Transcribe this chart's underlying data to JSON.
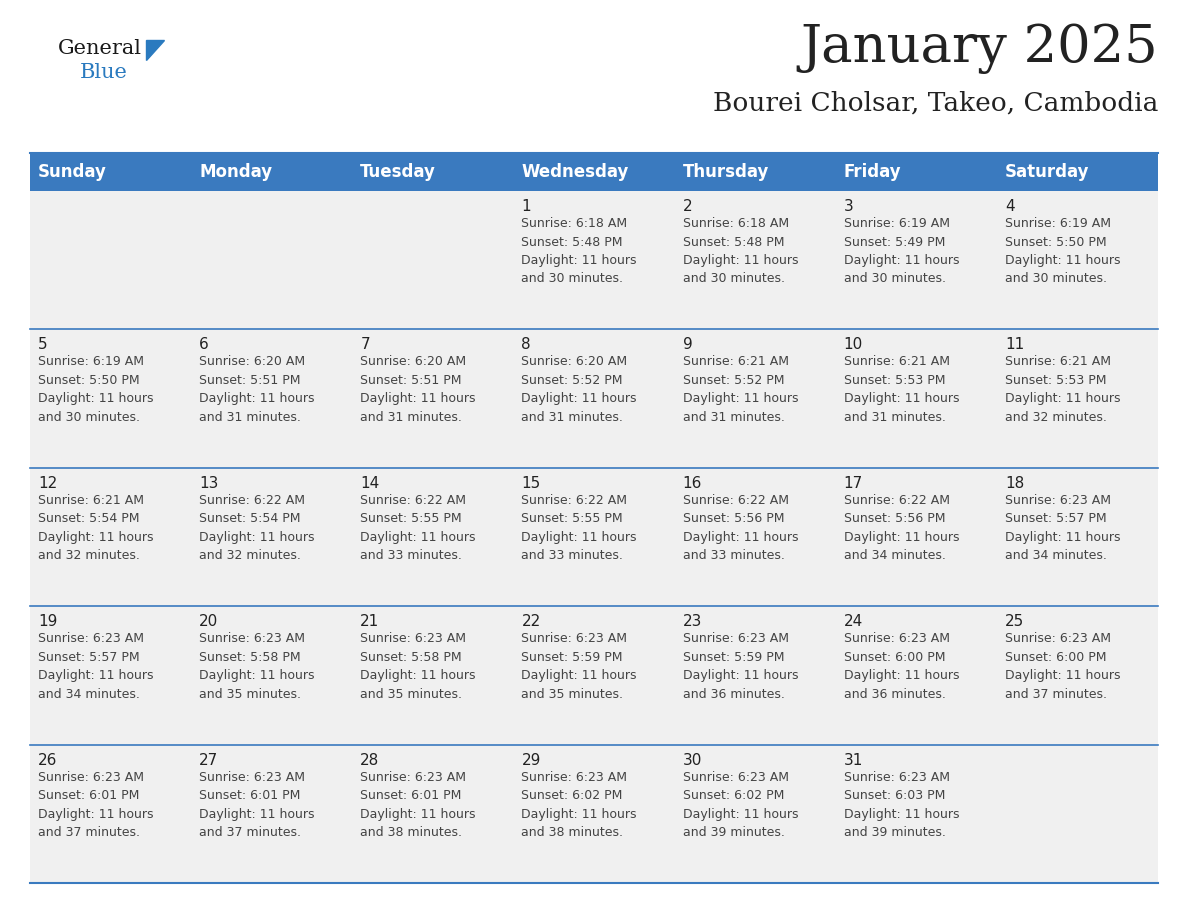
{
  "title": "January 2025",
  "subtitle": "Bourei Cholsar, Takeo, Cambodia",
  "days_of_week": [
    "Sunday",
    "Monday",
    "Tuesday",
    "Wednesday",
    "Thursday",
    "Friday",
    "Saturday"
  ],
  "header_bg": "#3a7abf",
  "header_text_color": "#ffffff",
  "cell_bg": "#f0f0f0",
  "row_line_color": "#3a7abf",
  "title_color": "#222222",
  "subtitle_color": "#222222",
  "day_number_color": "#222222",
  "cell_text_color": "#444444",
  "logo_general_color": "#1a1a1a",
  "logo_blue_color": "#2a7abf",
  "logo_triangle_color": "#2a7abf",
  "weeks": [
    [
      {
        "day": null,
        "data": null
      },
      {
        "day": null,
        "data": null
      },
      {
        "day": null,
        "data": null
      },
      {
        "day": 1,
        "data": "Sunrise: 6:18 AM\nSunset: 5:48 PM\nDaylight: 11 hours\nand 30 minutes."
      },
      {
        "day": 2,
        "data": "Sunrise: 6:18 AM\nSunset: 5:48 PM\nDaylight: 11 hours\nand 30 minutes."
      },
      {
        "day": 3,
        "data": "Sunrise: 6:19 AM\nSunset: 5:49 PM\nDaylight: 11 hours\nand 30 minutes."
      },
      {
        "day": 4,
        "data": "Sunrise: 6:19 AM\nSunset: 5:50 PM\nDaylight: 11 hours\nand 30 minutes."
      }
    ],
    [
      {
        "day": 5,
        "data": "Sunrise: 6:19 AM\nSunset: 5:50 PM\nDaylight: 11 hours\nand 30 minutes."
      },
      {
        "day": 6,
        "data": "Sunrise: 6:20 AM\nSunset: 5:51 PM\nDaylight: 11 hours\nand 31 minutes."
      },
      {
        "day": 7,
        "data": "Sunrise: 6:20 AM\nSunset: 5:51 PM\nDaylight: 11 hours\nand 31 minutes."
      },
      {
        "day": 8,
        "data": "Sunrise: 6:20 AM\nSunset: 5:52 PM\nDaylight: 11 hours\nand 31 minutes."
      },
      {
        "day": 9,
        "data": "Sunrise: 6:21 AM\nSunset: 5:52 PM\nDaylight: 11 hours\nand 31 minutes."
      },
      {
        "day": 10,
        "data": "Sunrise: 6:21 AM\nSunset: 5:53 PM\nDaylight: 11 hours\nand 31 minutes."
      },
      {
        "day": 11,
        "data": "Sunrise: 6:21 AM\nSunset: 5:53 PM\nDaylight: 11 hours\nand 32 minutes."
      }
    ],
    [
      {
        "day": 12,
        "data": "Sunrise: 6:21 AM\nSunset: 5:54 PM\nDaylight: 11 hours\nand 32 minutes."
      },
      {
        "day": 13,
        "data": "Sunrise: 6:22 AM\nSunset: 5:54 PM\nDaylight: 11 hours\nand 32 minutes."
      },
      {
        "day": 14,
        "data": "Sunrise: 6:22 AM\nSunset: 5:55 PM\nDaylight: 11 hours\nand 33 minutes."
      },
      {
        "day": 15,
        "data": "Sunrise: 6:22 AM\nSunset: 5:55 PM\nDaylight: 11 hours\nand 33 minutes."
      },
      {
        "day": 16,
        "data": "Sunrise: 6:22 AM\nSunset: 5:56 PM\nDaylight: 11 hours\nand 33 minutes."
      },
      {
        "day": 17,
        "data": "Sunrise: 6:22 AM\nSunset: 5:56 PM\nDaylight: 11 hours\nand 34 minutes."
      },
      {
        "day": 18,
        "data": "Sunrise: 6:23 AM\nSunset: 5:57 PM\nDaylight: 11 hours\nand 34 minutes."
      }
    ],
    [
      {
        "day": 19,
        "data": "Sunrise: 6:23 AM\nSunset: 5:57 PM\nDaylight: 11 hours\nand 34 minutes."
      },
      {
        "day": 20,
        "data": "Sunrise: 6:23 AM\nSunset: 5:58 PM\nDaylight: 11 hours\nand 35 minutes."
      },
      {
        "day": 21,
        "data": "Sunrise: 6:23 AM\nSunset: 5:58 PM\nDaylight: 11 hours\nand 35 minutes."
      },
      {
        "day": 22,
        "data": "Sunrise: 6:23 AM\nSunset: 5:59 PM\nDaylight: 11 hours\nand 35 minutes."
      },
      {
        "day": 23,
        "data": "Sunrise: 6:23 AM\nSunset: 5:59 PM\nDaylight: 11 hours\nand 36 minutes."
      },
      {
        "day": 24,
        "data": "Sunrise: 6:23 AM\nSunset: 6:00 PM\nDaylight: 11 hours\nand 36 minutes."
      },
      {
        "day": 25,
        "data": "Sunrise: 6:23 AM\nSunset: 6:00 PM\nDaylight: 11 hours\nand 37 minutes."
      }
    ],
    [
      {
        "day": 26,
        "data": "Sunrise: 6:23 AM\nSunset: 6:01 PM\nDaylight: 11 hours\nand 37 minutes."
      },
      {
        "day": 27,
        "data": "Sunrise: 6:23 AM\nSunset: 6:01 PM\nDaylight: 11 hours\nand 37 minutes."
      },
      {
        "day": 28,
        "data": "Sunrise: 6:23 AM\nSunset: 6:01 PM\nDaylight: 11 hours\nand 38 minutes."
      },
      {
        "day": 29,
        "data": "Sunrise: 6:23 AM\nSunset: 6:02 PM\nDaylight: 11 hours\nand 38 minutes."
      },
      {
        "day": 30,
        "data": "Sunrise: 6:23 AM\nSunset: 6:02 PM\nDaylight: 11 hours\nand 39 minutes."
      },
      {
        "day": 31,
        "data": "Sunrise: 6:23 AM\nSunset: 6:03 PM\nDaylight: 11 hours\nand 39 minutes."
      },
      {
        "day": null,
        "data": null
      }
    ]
  ]
}
